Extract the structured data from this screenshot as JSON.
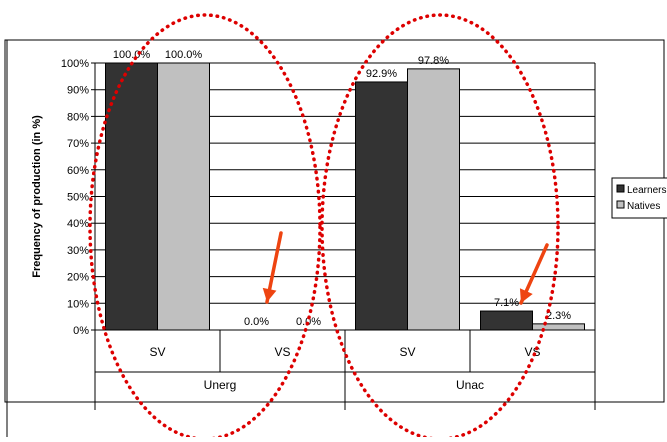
{
  "chart_data": {
    "type": "bar",
    "ylabel": "Frequency of production (in %)",
    "ylim": [
      0,
      100
    ],
    "yticks": [
      "0%",
      "10%",
      "20%",
      "30%",
      "40%",
      "50%",
      "60%",
      "70%",
      "80%",
      "90%",
      "100%"
    ],
    "categories": [
      "SV",
      "VS",
      "SV",
      "VS"
    ],
    "groups": [
      {
        "label": "Unerg",
        "categories": [
          "SV",
          "VS"
        ]
      },
      {
        "label": "Unac",
        "categories": [
          "SV",
          "VS"
        ]
      }
    ],
    "series": [
      {
        "name": "Learners",
        "values": [
          100.0,
          0.0,
          92.9,
          7.1
        ],
        "labels": [
          "100.0%",
          "0.0%",
          "92.9%",
          "7.1%"
        ],
        "color": "#333333"
      },
      {
        "name": "Natives",
        "values": [
          100.0,
          0.0,
          97.8,
          2.3
        ],
        "labels": [
          "100.0%",
          "0.0%",
          "97.8%",
          "2.3%"
        ],
        "color": "#c0c0c0"
      }
    ],
    "legend": {
      "position": "right",
      "entries": [
        "Learners",
        "Natives"
      ]
    },
    "grid": true,
    "annotations": {
      "ellipse_color": "#dd0000",
      "arrow_color": "#ee4411",
      "ellipses": [
        "Unerg",
        "Unac"
      ],
      "arrows": [
        "Unerg VS",
        "Unac VS"
      ]
    }
  }
}
